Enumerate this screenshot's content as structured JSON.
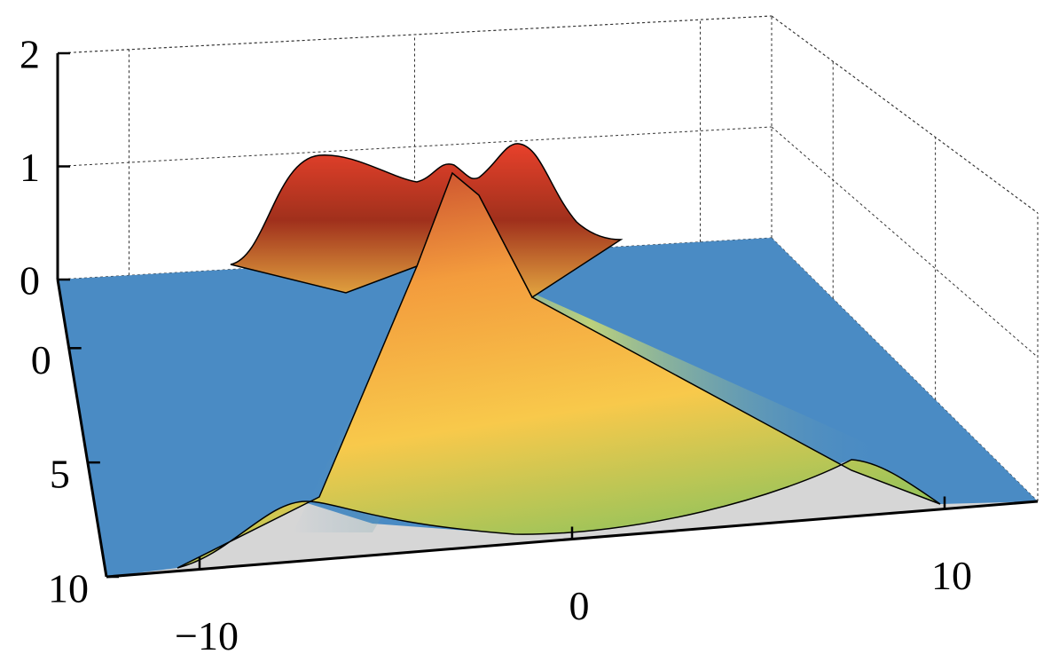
{
  "chart_data": {
    "type": "surface3d",
    "xlim": [
      -12.5,
      12.5
    ],
    "ylim": [
      -3,
      10
    ],
    "zlim": [
      0,
      2
    ],
    "xticks": [
      {
        "value": -10,
        "label": "−10"
      },
      0,
      10
    ],
    "yticks": [
      0,
      5,
      10
    ],
    "zticks": [
      0,
      1,
      2
    ],
    "grid": true
  }
}
